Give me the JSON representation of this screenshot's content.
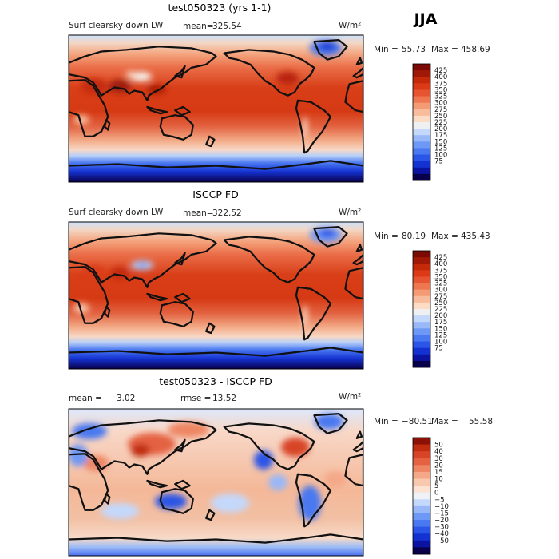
{
  "season": "JJA",
  "units_label": "W/m²",
  "colors": {
    "abs": [
      "#08004a",
      "#0a14a0",
      "#1432d2",
      "#2a55e6",
      "#4a78f0",
      "#6e98f5",
      "#98b8f8",
      "#c4d8fc",
      "#eef0f2",
      "#fcdcc4",
      "#f8bc9c",
      "#f49a74",
      "#ee7650",
      "#e65432",
      "#dc3a16",
      "#c42a0a",
      "#a01806",
      "#7c0a04"
    ],
    "diff": [
      "#08004a",
      "#0a14a0",
      "#1432d2",
      "#2a55e6",
      "#4a78f0",
      "#6e98f5",
      "#98b8f8",
      "#c4d8fc",
      "#eef2f6",
      "#fbe2d2",
      "#f8c8ae",
      "#f4a888",
      "#ee8664",
      "#e46242",
      "#d84426",
      "#c02c10",
      "#8c1006"
    ]
  },
  "chart_data": [
    {
      "type": "heatmap",
      "title": "test050323 (yrs 1-1)",
      "variable": "Surf clearsky down LW",
      "mean_label": "mean=",
      "mean": "325.54",
      "units": "W/m²",
      "min_label": "Min =",
      "min": "55.73",
      "max_label": "Max =",
      "max": "458.69",
      "scale": "abs",
      "colorbar_levels": [
        "425",
        "400",
        "375",
        "350",
        "325",
        "300",
        "275",
        "250",
        "225",
        "200",
        "175",
        "150",
        "125",
        "100",
        "75"
      ]
    },
    {
      "type": "heatmap",
      "title": "ISCCP FD",
      "variable": "Surf clearsky down LW",
      "mean_label": "mean=",
      "mean": "322.52",
      "units": "W/m²",
      "min_label": "Min =",
      "min": "80.19",
      "max_label": "Max =",
      "max": "435.43",
      "scale": "abs",
      "colorbar_levels": [
        "425",
        "400",
        "375",
        "350",
        "325",
        "300",
        "275",
        "250",
        "225",
        "200",
        "175",
        "150",
        "125",
        "100",
        "75"
      ]
    },
    {
      "type": "heatmap",
      "title": "test050323 - ISCCP FD",
      "mean_label": "mean =",
      "mean": "3.02",
      "rmse_label": "rmse =",
      "rmse": "13.52",
      "units": "W/m²",
      "min_label": "Min =",
      "min": "−80.51",
      "max_label": "Max =",
      "max": "55.58",
      "scale": "diff",
      "colorbar_levels": [
        "50",
        "40",
        "30",
        "20",
        "15",
        "10",
        "5",
        "0",
        "−5",
        "−10",
        "−15",
        "−20",
        "−30",
        "−40",
        "−50"
      ]
    }
  ]
}
